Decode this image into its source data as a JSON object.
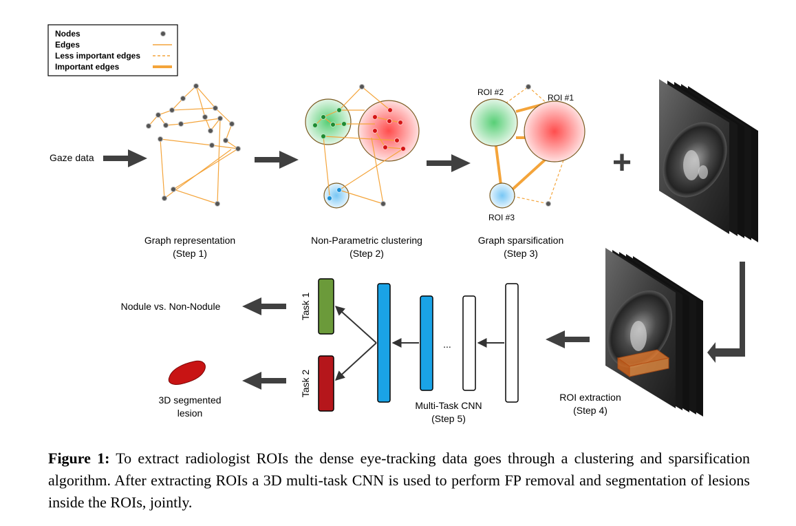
{
  "legend": {
    "nodes": "Nodes",
    "edges": "Edges",
    "less_important_edges": "Less important edges",
    "important_edges": "Important edges"
  },
  "input_label": "Gaze data",
  "steps": {
    "step1": {
      "title": "Graph representation",
      "sub": "(Step 1)"
    },
    "step2": {
      "title": "Non-Parametric clustering",
      "sub": "(Step 2)"
    },
    "step3": {
      "title": "Graph sparsification",
      "sub": "(Step 3)"
    },
    "step4": {
      "title": "ROI extraction",
      "sub": "(Step 4)"
    },
    "step5": {
      "title": "Multi-Task CNN",
      "sub": "(Step 5)"
    }
  },
  "roi_labels": {
    "roi1": "ROI #1",
    "roi2": "ROI #2",
    "roi3": "ROI #3"
  },
  "plus_sign": "+",
  "tasks": {
    "task1": "Task 1",
    "task2": "Task 2"
  },
  "ellipsis": "...",
  "outputs": {
    "classification": "Nodule vs. Non-Nodule",
    "segmentation_line1": "3D segmented",
    "segmentation_line2": "lesion"
  },
  "caption": {
    "label": "Figure 1:",
    "text": "To extract radiologist ROIs the dense eye-tracking data goes through a clustering and sparsification algorithm. After extracting ROIs a 3D multi-task CNN is used to perform FP removal and segmentation of lesions inside the ROIs, jointly."
  },
  "colors": {
    "edge": "#f4a43a",
    "node": "#555555",
    "cluster_green": "#2e9e3e",
    "cluster_red": "#d81e1e",
    "cluster_blue": "#2b9fe0",
    "cnn_blue": "#1aa3e6",
    "task1": "#6b9a3a",
    "task2": "#b5161b",
    "arrow": "#404040"
  }
}
